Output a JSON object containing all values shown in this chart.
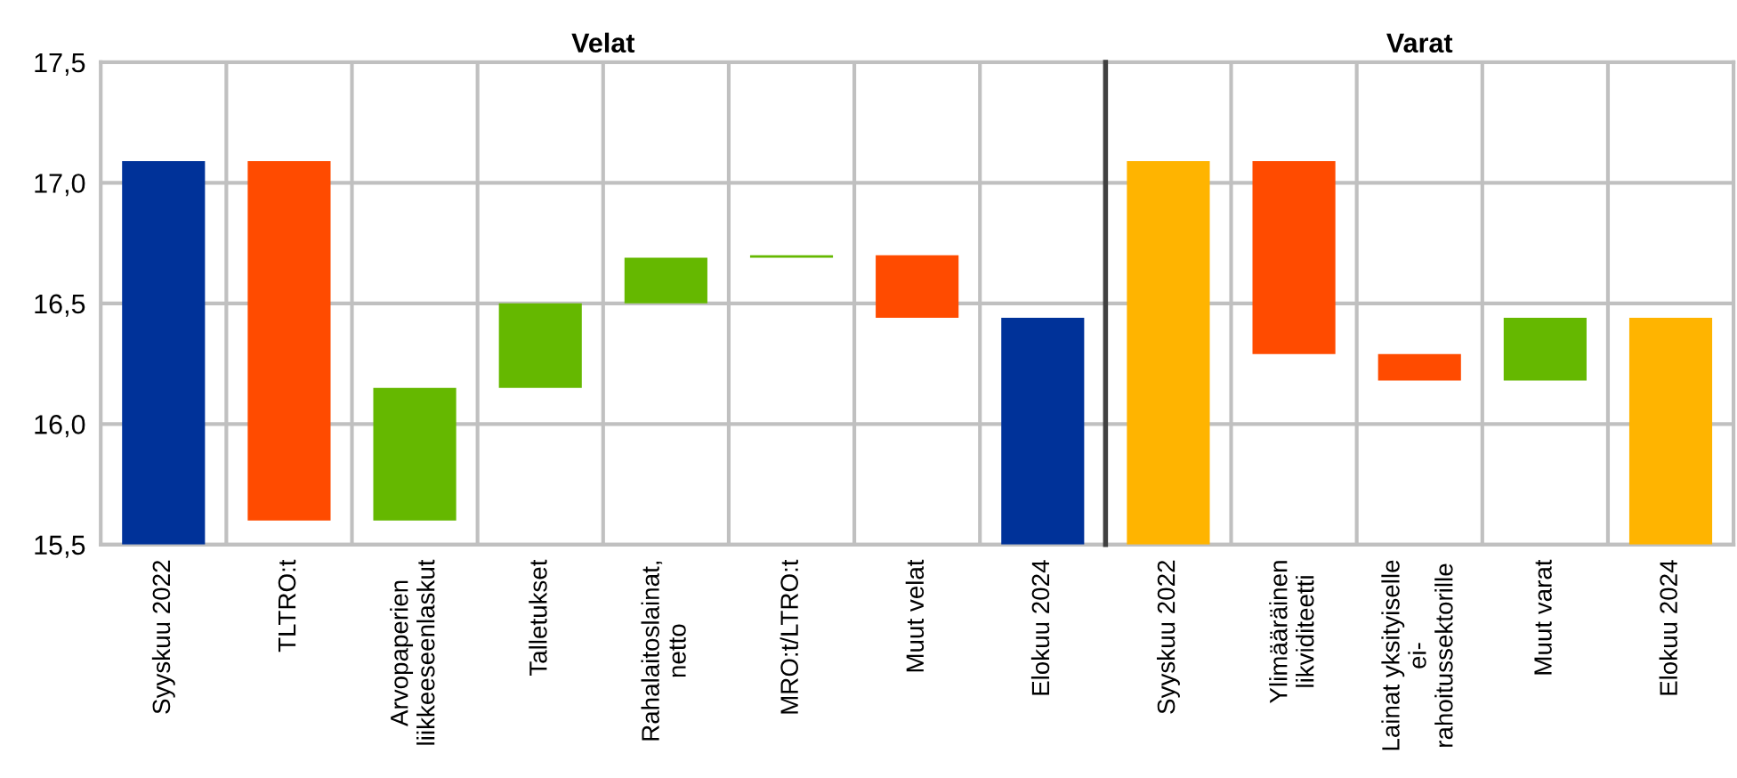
{
  "chart_data": [
    {
      "type": "bar",
      "title": "Velat",
      "categories": [
        "Syyskuu 2022",
        "TLTRO:t",
        "Arvopaperien\nliikkeeseenlaskut",
        "Talletukset",
        "Rahalaitoslainat,\nnetto",
        "MRO:t/LTRO:t",
        "Muut velat",
        "Elokuu 2024"
      ],
      "values": [
        1.59,
        1.49,
        0.55,
        0.35,
        0.19,
        0.01,
        0.26,
        0.94
      ],
      "base": [
        15.5,
        15.6,
        15.6,
        16.15,
        16.5,
        16.69,
        16.44,
        15.5
      ],
      "colors": [
        "#003299",
        "#ff4b00",
        "#65b800",
        "#65b800",
        "#65b800",
        "#65b800",
        "#ff4b00",
        "#003299"
      ],
      "ylim": [
        15.5,
        17.5
      ],
      "yticks": [
        {
          "value": 15.5,
          "label": "15,5"
        },
        {
          "value": 16.0,
          "label": "16,0"
        },
        {
          "value": 16.5,
          "label": "16,5"
        },
        {
          "value": 17.0,
          "label": "17,0"
        },
        {
          "value": 17.5,
          "label": "17,5"
        }
      ],
      "grid": true
    },
    {
      "type": "bar",
      "title": "Varat",
      "categories": [
        "Syyskuu 2022",
        "Ylimääräinen\nlikviditeetti",
        "Lainat yksityiselle\nei-\nrahoitussektorille",
        "Muut varat",
        "Elokuu 2024"
      ],
      "values": [
        1.59,
        0.8,
        0.11,
        0.26,
        0.94
      ],
      "base": [
        15.5,
        16.29,
        16.18,
        16.18,
        15.5
      ],
      "colors": [
        "#ffb400",
        "#ff4b00",
        "#ff4b00",
        "#65b800",
        "#ffb400"
      ],
      "ylim": [
        15.5,
        17.5
      ],
      "yticks": [
        {
          "value": 15.5,
          "label": null
        },
        {
          "value": 16.0,
          "label": null
        },
        {
          "value": 16.5,
          "label": null
        },
        {
          "value": 17.0,
          "label": null
        },
        {
          "value": 17.5,
          "label": null
        }
      ],
      "tick_labels": "x",
      "grid": true
    }
  ]
}
